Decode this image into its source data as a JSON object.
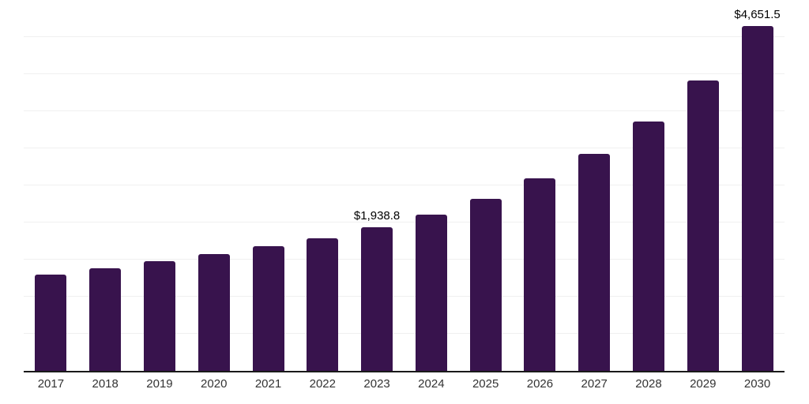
{
  "chart_data": {
    "type": "bar",
    "title": "",
    "xlabel": "",
    "ylabel": "",
    "categories": [
      "2017",
      "2018",
      "2019",
      "2020",
      "2021",
      "2022",
      "2023",
      "2024",
      "2025",
      "2026",
      "2027",
      "2028",
      "2029",
      "2030"
    ],
    "values": [
      1293,
      1386,
      1477,
      1573,
      1679,
      1790,
      1938.8,
      2107,
      2320,
      2594,
      2930,
      3360,
      3920,
      4651.5
    ],
    "labels": [
      "",
      "",
      "",
      "",
      "",
      "",
      "$1,938.8",
      "",
      "",
      "",
      "",
      "",
      "",
      "$4,651.5"
    ],
    "ylim": [
      0,
      5000
    ],
    "gridline_step": 500,
    "grid": true,
    "legend": false,
    "colors": {
      "bar": "#38134D",
      "gridline": "#F0F0F0",
      "axis_line": "#1A1A1A",
      "tick_label": "#333333",
      "data_label": "#000000",
      "background": "#FFFFFF"
    }
  }
}
